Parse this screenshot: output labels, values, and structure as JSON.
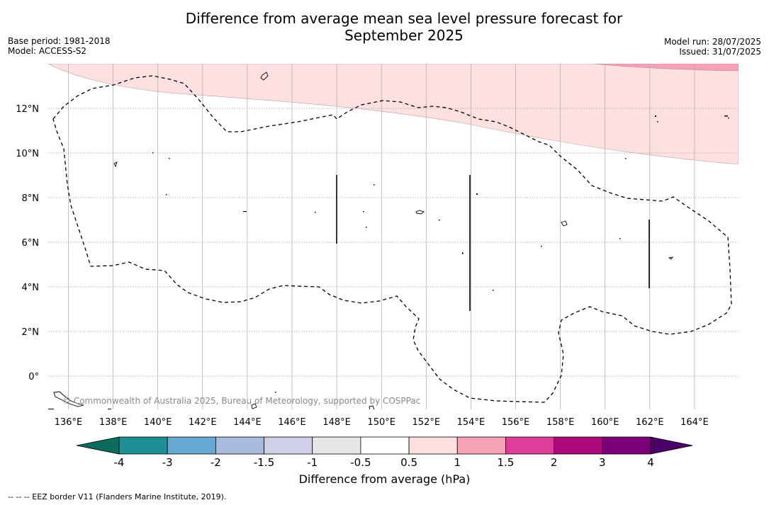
{
  "title_line1": "Difference from average mean sea level pressure forecast for",
  "title_line2": "September 2025",
  "base_period": "Base period: 1981-2018",
  "model": "Model: ACCESS-S2",
  "model_run": "Model run: 28/07/2025",
  "issued": "Issued: 31/07/2025",
  "copyright": "© Commonwealth of Australia 2025, Bureau of Meteorology, supported by COSPPac",
  "lon_ticks": [
    "136°E",
    "138°E",
    "140°E",
    "142°E",
    "144°E",
    "146°E",
    "148°E",
    "150°E",
    "152°E",
    "154°E",
    "156°E",
    "158°E",
    "160°E",
    "162°E",
    "164°E"
  ],
  "lat_ticks": [
    "12°N",
    "10°N",
    "8°N",
    "6°N",
    "4°N",
    "2°N",
    "0°"
  ],
  "colorbar": {
    "title": "Difference from average (hPa)",
    "labels": [
      "-4",
      "-3",
      "-2",
      "-1.5",
      "-1",
      "-0.5",
      "0.5",
      "1",
      "1.5",
      "2",
      "3",
      "4"
    ],
    "colors": [
      "#1f8f96",
      "#66a9d2",
      "#a7bbdc",
      "#cfd0e8",
      "#e6e6e6",
      "#ffffff",
      "#fde0e0",
      "#f7a1b7",
      "#dd3e9a",
      "#ad0a7c",
      "#7b0078"
    ],
    "under_color": "#0b6b5d",
    "over_color": "#4b0067"
  },
  "footnote": "--  --  -- EEZ border V11 (Flanders Marine Institute, 2019).",
  "chart_data": {
    "type": "heatmap",
    "title": "Difference from average mean sea level pressure forecast for September 2025",
    "xlabel": "",
    "ylabel": "",
    "xlim": [
      135.2,
      165.8
    ],
    "ylim": [
      -1.5,
      14.0
    ],
    "legend_title": "Difference from average (hPa)",
    "levels": [
      -4,
      -3,
      -2,
      -1.5,
      -1,
      -0.5,
      0.5,
      1,
      1.5,
      2,
      3,
      4
    ],
    "regions": [
      {
        "range": "0.5 to 1",
        "color": "#fde0e0",
        "location": "northern part of map, north of approx 12°N in west to 9.5°N in east"
      },
      {
        "range": "1 to 1.5",
        "color": "#f7a1b7",
        "location": "far north-east corner"
      }
    ]
  }
}
